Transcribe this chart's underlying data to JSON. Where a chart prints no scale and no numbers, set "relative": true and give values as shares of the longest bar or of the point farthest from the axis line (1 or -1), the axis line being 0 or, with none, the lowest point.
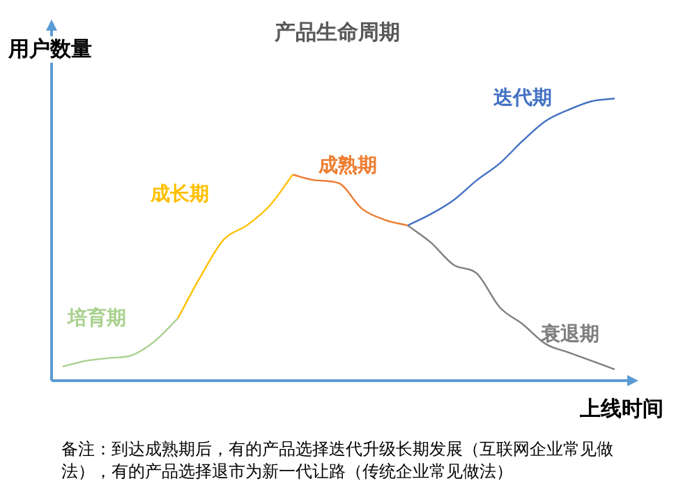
{
  "chart_data": {
    "type": "line",
    "title": "产品生命周期",
    "xlabel": "上线时间",
    "ylabel": "用户数量",
    "relative": true,
    "legend": false,
    "tick_labels": false,
    "marker": "none",
    "categories": [
      null,
      null,
      null,
      null,
      null,
      null,
      null,
      null,
      null,
      null,
      null,
      null,
      null,
      null,
      null,
      null,
      null,
      null,
      null,
      null,
      null,
      null,
      null,
      null,
      null
    ],
    "series": [
      {
        "name": "培育期",
        "color": "#a9d18e",
        "values": [
          0.05,
          0.07,
          0.08,
          0.09,
          0.14,
          0.22,
          null,
          null,
          null,
          null,
          null,
          null,
          null,
          null,
          null,
          null,
          null,
          null,
          null,
          null,
          null,
          null,
          null,
          null,
          null
        ]
      },
      {
        "name": "成长期",
        "color": "#ffc000",
        "values": [
          null,
          null,
          null,
          null,
          null,
          0.22,
          0.37,
          0.5,
          0.55,
          0.62,
          0.73,
          null,
          null,
          null,
          null,
          null,
          null,
          null,
          null,
          null,
          null,
          null,
          null,
          null,
          null
        ]
      },
      {
        "name": "成熟期",
        "color": "#ed7d31",
        "values": [
          null,
          null,
          null,
          null,
          null,
          null,
          null,
          null,
          null,
          null,
          0.73,
          0.71,
          0.7,
          0.61,
          0.57,
          0.55,
          null,
          null,
          null,
          null,
          null,
          null,
          null,
          null,
          null
        ]
      },
      {
        "name": "迭代期",
        "color": "#4472c4",
        "values": [
          null,
          null,
          null,
          null,
          null,
          null,
          null,
          null,
          null,
          null,
          null,
          null,
          null,
          null,
          null,
          0.55,
          0.59,
          0.64,
          0.71,
          0.77,
          0.85,
          0.92,
          0.96,
          0.99,
          1
        ]
      },
      {
        "name": "衰退期",
        "color": "#7f7f7f",
        "values": [
          null,
          null,
          null,
          null,
          null,
          null,
          null,
          null,
          null,
          null,
          null,
          null,
          null,
          null,
          null,
          0.55,
          0.49,
          0.41,
          0.38,
          0.26,
          0.2,
          0.13,
          0.1,
          0.07,
          0.04
        ]
      }
    ],
    "annotations": [
      "备注：到达成熟期后，有的产品选择迭代升级长期发展（互联网企业常见做法），有的产品选择退市为新一代让路（传统企业常见做法）"
    ]
  }
}
